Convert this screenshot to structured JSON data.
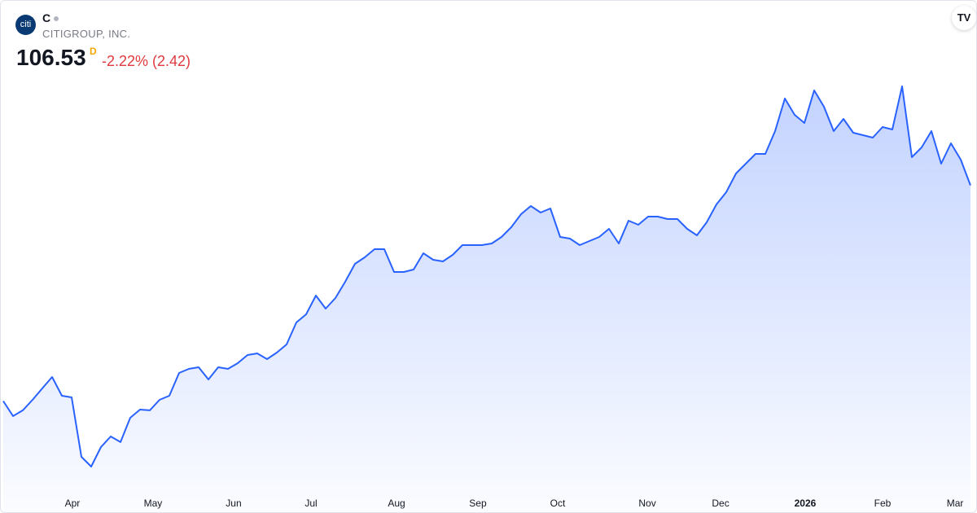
{
  "header": {
    "logo": "citi",
    "symbol": "C",
    "name": "CITIGROUP, INC.",
    "price": 106.53,
    "interval": "D",
    "change": "-2.22% (2.42)"
  },
  "chart_data": {
    "type": "area",
    "color": "#2962ff",
    "values": [
      69.05,
      66.43,
      67.43,
      69.26,
      71.25,
      73.23,
      69.97,
      69.69,
      59.36,
      57.66,
      61.06,
      62.9,
      61.91,
      66.15,
      67.57,
      67.43,
      69.26,
      69.97,
      73.93,
      74.64,
      74.92,
      72.8,
      74.92,
      74.64,
      75.63,
      77.05,
      77.33,
      76.34,
      77.47,
      78.89,
      82.71,
      84.12,
      87.38,
      85.11,
      86.95,
      89.78,
      92.9,
      94.03,
      95.44,
      95.44,
      91.48,
      91.48,
      91.9,
      94.73,
      93.6,
      93.32,
      94.45,
      96.15,
      96.15,
      96.15,
      96.43,
      97.56,
      99.26,
      101.53,
      102.94,
      101.81,
      102.52,
      97.56,
      97.28,
      96.15,
      96.86,
      97.56,
      98.98,
      96.43,
      100.39,
      99.69,
      101.1,
      101.1,
      100.68,
      100.68,
      98.98,
      97.85,
      100.11,
      103.22,
      105.35,
      108.6,
      110.3,
      112.0,
      112.0,
      115.96,
      121.62,
      118.79,
      117.37,
      123.03,
      120.2,
      115.96,
      118.08,
      115.68,
      115.25,
      114.83,
      116.67,
      116.24,
      123.74,
      111.43,
      113.13,
      115.96,
      110.3,
      113.84,
      111.01,
      106.53
    ],
    "xlim": [
      0,
      99
    ],
    "ylim": [
      49.45,
      138.6
    ],
    "xticks": [
      {
        "value": 7.08,
        "label": "Apr"
      },
      {
        "value": 15.33,
        "label": "May"
      },
      {
        "value": 23.58,
        "label": "Jun"
      },
      {
        "value": 31.5,
        "label": "Jul"
      },
      {
        "value": 40.25,
        "label": "Aug"
      },
      {
        "value": 48.58,
        "label": "Sep"
      },
      {
        "value": 56.75,
        "label": "Oct"
      },
      {
        "value": 65.92,
        "label": "Nov"
      },
      {
        "value": 73.42,
        "label": "Dec"
      },
      {
        "value": 82.08,
        "label": "2026"
      },
      {
        "value": 90,
        "label": "Feb"
      },
      {
        "value": 97.42,
        "label": "Mar"
      }
    ]
  }
}
